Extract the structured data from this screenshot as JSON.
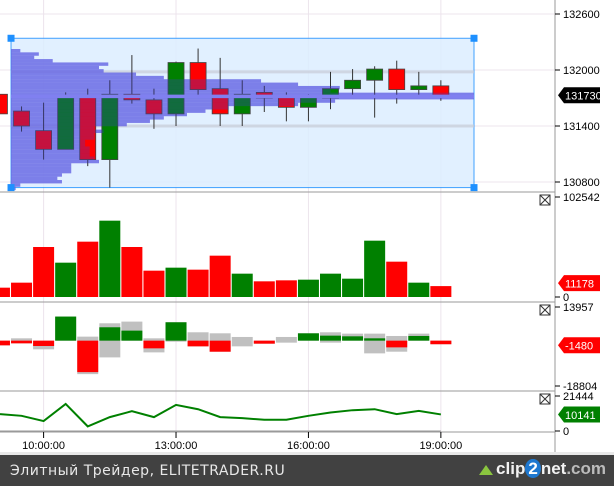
{
  "chart_data": [
    {
      "type": "candlestick",
      "panel": "price",
      "x": [
        "09:00",
        "09:30",
        "10:00",
        "10:30",
        "11:00",
        "11:30",
        "12:00",
        "12:30",
        "13:00",
        "13:30",
        "14:00",
        "14:30",
        "15:00",
        "15:30",
        "16:00",
        "16:30",
        "17:00",
        "17:30",
        "18:00",
        "18:30",
        "19:00"
      ],
      "ohlc": [
        [
          131740,
          131750,
          131520,
          131530
        ],
        [
          131560,
          131610,
          131340,
          131400
        ],
        [
          131350,
          131650,
          131040,
          131150
        ],
        [
          131150,
          131760,
          131150,
          131710
        ],
        [
          131710,
          131800,
          130970,
          131040
        ],
        [
          131040,
          131890,
          130740,
          131740
        ],
        [
          131740,
          132160,
          131640,
          131680
        ],
        [
          131680,
          131800,
          131370,
          131530
        ],
        [
          131530,
          132090,
          131400,
          132080
        ],
        [
          132080,
          132230,
          131700,
          131790
        ],
        [
          131800,
          132130,
          131400,
          131530
        ],
        [
          131530,
          131890,
          131400,
          131740
        ],
        [
          131760,
          131830,
          131550,
          131700
        ],
        [
          131710,
          131760,
          131450,
          131600
        ],
        [
          131600,
          131740,
          131450,
          131710
        ],
        [
          131700,
          131980,
          131580,
          131800
        ],
        [
          131800,
          132010,
          131710,
          131890
        ],
        [
          131890,
          132040,
          131490,
          132010
        ],
        [
          132010,
          132100,
          131640,
          131790
        ],
        [
          131790,
          131980,
          131730,
          131830
        ],
        [
          131830,
          131890,
          131670,
          131730
        ]
      ],
      "y_ticks": [
        "132600",
        "132000",
        "131400",
        "130800"
      ],
      "ylim": [
        130650,
        132750
      ],
      "last_price_label": "131730",
      "volume_profile": {
        "top_price": 132225,
        "step": 36,
        "relative": [
          0.02,
          0.06,
          0.05,
          0.09,
          0.21,
          0.19,
          0.2,
          0.27,
          0.33,
          0.54,
          0.62,
          0.71,
          0.69,
          1.0,
          1.0,
          0.7,
          0.62,
          0.47,
          0.42,
          0.38,
          0.33,
          0.3,
          0.25,
          0.18,
          0.2,
          0.18,
          0.18,
          0.16,
          0.16,
          0.17,
          0.17,
          0.17,
          0.18,
          0.19,
          0.13,
          0.13,
          0.13,
          0.11,
          0.1,
          0.11,
          0.02,
          0.01
        ],
        "poc_price": 131720,
        "value_area": [
          131400,
          131980
        ],
        "range_start": "09:30",
        "range_end": "20:00",
        "range_high": 132340,
        "range_low": 130740
      },
      "grid": true
    },
    {
      "type": "bar",
      "panel": "volume",
      "values": [
        9570,
        14700,
        51270,
        35200,
        56740,
        78270,
        51270,
        27000,
        30080,
        28030,
        42380,
        23930,
        16070,
        17090,
        17770,
        23930,
        18800,
        57760,
        36230,
        14700,
        11178
      ],
      "colors": [
        "red",
        "red",
        "red",
        "green",
        "red",
        "green",
        "red",
        "red",
        "green",
        "red",
        "red",
        "green",
        "red",
        "red",
        "green",
        "green",
        "green",
        "green",
        "red",
        "green",
        "red"
      ],
      "y_ticks": [
        "102542",
        "0"
      ],
      "ylim": [
        0,
        102542
      ],
      "last_label": "11178"
    },
    {
      "type": "bar",
      "panel": "delta",
      "values": [
        -1940,
        -1110,
        -2220,
        9990,
        -13050,
        5550,
        4160,
        -3190,
        7630,
        -2360,
        -4580,
        0,
        -1250,
        0,
        3050,
        2080,
        1800,
        970,
        -2780,
        1940,
        -1480
      ],
      "grey_ranges": [
        [
          -1940,
          0
        ],
        [
          -1110,
          970
        ],
        [
          -3600,
          0
        ],
        [
          0,
          9990
        ],
        [
          -13880,
          1670
        ],
        [
          -6940,
          7200
        ],
        [
          0,
          7900
        ],
        [
          -4860,
          970
        ],
        [
          -420,
          7630
        ],
        [
          -2360,
          3470
        ],
        [
          -4580,
          3050
        ],
        [
          -2360,
          1530
        ],
        [
          -1250,
          0
        ],
        [
          -830,
          1530
        ],
        [
          0,
          3050
        ],
        [
          -830,
          3470
        ],
        [
          0,
          2910
        ],
        [
          -5270,
          2910
        ],
        [
          -4580,
          1940
        ],
        [
          0,
          2910
        ],
        [
          -1480,
          0
        ]
      ],
      "y_ticks": [
        "13957",
        "-18804"
      ],
      "ylim": [
        -18804,
        13957
      ],
      "last_label": "-1480"
    },
    {
      "type": "line",
      "panel": "cumulative",
      "values": [
        10320,
        9310,
        6070,
        16590,
        2830,
        8500,
        12140,
        8500,
        15980,
        13350,
        8500,
        7890,
        6880,
        6880,
        9310,
        11330,
        12750,
        13350,
        10320,
        12340,
        10141
      ],
      "y_ticks": [
        "21444",
        "0"
      ],
      "ylim": [
        0,
        21444
      ],
      "last_label": "10141"
    }
  ],
  "x_axis": {
    "tick_labels": [
      "10:00:00",
      "13:00:00",
      "16:00:00",
      "19:00:00"
    ],
    "tick_times": [
      "10:00",
      "13:00",
      "16:00",
      "19:00"
    ]
  },
  "colors": {
    "up": "#008000",
    "down": "#ff0000",
    "overlay_up": "#1f5f8f",
    "overlay_down": "#8f2080",
    "profile": "#8080f0",
    "selection": "#dceeff",
    "handle": "#1e90ff",
    "grey": "#c0c0c0",
    "line": "#008000",
    "last_price_bg": "#000000"
  },
  "footer": {
    "caption": "Элитный Трейдер, ELITETRADER.RU",
    "logo_a": "clip",
    "logo_b": "2",
    "logo_c": "net",
    "logo_d": ".com"
  }
}
